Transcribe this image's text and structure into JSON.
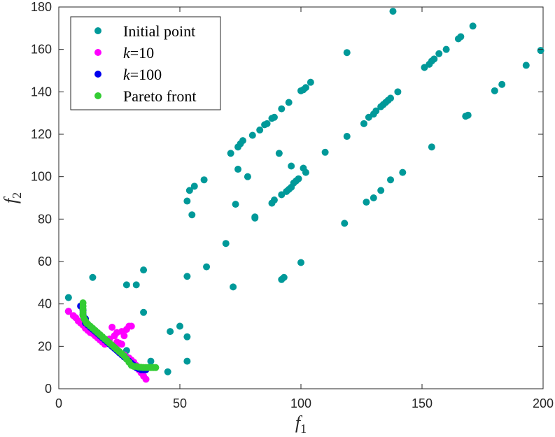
{
  "chart_data": {
    "type": "scatter",
    "xlabel": {
      "symbol": "f",
      "sub": "1"
    },
    "ylabel": {
      "symbol": "f",
      "sub": "2"
    },
    "xlim": [
      0,
      200
    ],
    "ylim": [
      0,
      180
    ],
    "xticks": [
      0,
      50,
      100,
      150,
      200
    ],
    "yticks": [
      0,
      20,
      40,
      60,
      80,
      100,
      120,
      140,
      160,
      180
    ],
    "grid": false,
    "legend_placement": "top-left",
    "series": [
      {
        "name": "Initial point",
        "color": "#009999",
        "points": [
          [
            4,
            43
          ],
          [
            4,
            36.5
          ],
          [
            14,
            52.5
          ],
          [
            28,
            49
          ],
          [
            32,
            49
          ],
          [
            35,
            56
          ],
          [
            35,
            36
          ],
          [
            28,
            18
          ],
          [
            38,
            13
          ],
          [
            45,
            8
          ],
          [
            46,
            27
          ],
          [
            50,
            29.5
          ],
          [
            53,
            24.5
          ],
          [
            53,
            13
          ],
          [
            53,
            53
          ],
          [
            53,
            88.5
          ],
          [
            54,
            93.5
          ],
          [
            55,
            82
          ],
          [
            56,
            95.5
          ],
          [
            60,
            98.5
          ],
          [
            61,
            57.5
          ],
          [
            69,
            68.5
          ],
          [
            71,
            111
          ],
          [
            72,
            48
          ],
          [
            73,
            87
          ],
          [
            74,
            103.5
          ],
          [
            74,
            114
          ],
          [
            75,
            115.5
          ],
          [
            76,
            117
          ],
          [
            78,
            100
          ],
          [
            80,
            119.5
          ],
          [
            81,
            81
          ],
          [
            81,
            80.5
          ],
          [
            83,
            122
          ],
          [
            85,
            124.5
          ],
          [
            86,
            125
          ],
          [
            88,
            127.5
          ],
          [
            89,
            128
          ],
          [
            88,
            87.5
          ],
          [
            89,
            89
          ],
          [
            91,
            111
          ],
          [
            92,
            132
          ],
          [
            92,
            51.5
          ],
          [
            93,
            52.5
          ],
          [
            92,
            91.5
          ],
          [
            94,
            93
          ],
          [
            95,
            94
          ],
          [
            95,
            135
          ],
          [
            96,
            105
          ],
          [
            96,
            95
          ],
          [
            97,
            97
          ],
          [
            98,
            98
          ],
          [
            99,
            99
          ],
          [
            100,
            59.5
          ],
          [
            100,
            140.5
          ],
          [
            101,
            141
          ],
          [
            102,
            142
          ],
          [
            101,
            104
          ],
          [
            102,
            102
          ],
          [
            104,
            144.5
          ],
          [
            110,
            111.5
          ],
          [
            118,
            78
          ],
          [
            119,
            119
          ],
          [
            119,
            158.5
          ],
          [
            126,
            125
          ],
          [
            127,
            88
          ],
          [
            128,
            128
          ],
          [
            130,
            129.5
          ],
          [
            130,
            90
          ],
          [
            131,
            131
          ],
          [
            133,
            93.5
          ],
          [
            133,
            133
          ],
          [
            134,
            134
          ],
          [
            135,
            135
          ],
          [
            136,
            136
          ],
          [
            137,
            98.5
          ],
          [
            137,
            137
          ],
          [
            138,
            178
          ],
          [
            140,
            140
          ],
          [
            142,
            102
          ],
          [
            151,
            151.5
          ],
          [
            153,
            153
          ],
          [
            154,
            154.5
          ],
          [
            155,
            155.5
          ],
          [
            154,
            114
          ],
          [
            157,
            158
          ],
          [
            160,
            160
          ],
          [
            165,
            165
          ],
          [
            166,
            166
          ],
          [
            168,
            128.5
          ],
          [
            169,
            129
          ],
          [
            171,
            171
          ],
          [
            180,
            140.5
          ],
          [
            183,
            143.5
          ],
          [
            193,
            152.5
          ],
          [
            199,
            159.5
          ]
        ]
      },
      {
        "name": "k=10",
        "color": "#ff00ff",
        "points": [
          [
            4,
            36.5
          ],
          [
            6,
            34.5
          ],
          [
            7,
            33.5
          ],
          [
            8,
            32
          ],
          [
            9,
            31
          ],
          [
            10,
            30
          ],
          [
            11,
            28.5
          ],
          [
            12,
            27.5
          ],
          [
            13,
            26.5
          ],
          [
            14,
            26
          ],
          [
            15,
            25
          ],
          [
            16,
            24
          ],
          [
            17,
            23
          ],
          [
            18,
            22
          ],
          [
            19,
            21
          ],
          [
            20,
            22
          ],
          [
            21,
            23.5
          ],
          [
            22,
            29
          ],
          [
            23,
            25
          ],
          [
            24,
            26.5
          ],
          [
            24,
            22
          ],
          [
            25,
            21.5
          ],
          [
            26,
            27
          ],
          [
            26,
            21
          ],
          [
            27,
            25
          ],
          [
            28,
            28
          ],
          [
            29,
            29.5
          ],
          [
            30,
            29.5
          ],
          [
            28,
            15
          ],
          [
            29,
            14.5
          ],
          [
            30,
            13.5
          ],
          [
            31,
            12.5
          ],
          [
            32,
            11
          ],
          [
            33,
            9
          ],
          [
            34,
            7.5
          ],
          [
            35,
            6
          ],
          [
            36,
            4.5
          ],
          [
            25,
            17
          ],
          [
            26,
            16.5
          ],
          [
            27,
            16
          ]
        ]
      },
      {
        "name": "k=100",
        "color": "#0000ee",
        "points": [
          [
            9,
            39
          ],
          [
            10,
            37
          ],
          [
            10,
            35
          ],
          [
            11,
            33
          ],
          [
            11,
            31
          ],
          [
            12,
            30
          ],
          [
            13,
            29
          ],
          [
            14,
            28
          ],
          [
            15,
            27
          ],
          [
            16,
            26
          ],
          [
            17,
            25
          ],
          [
            18,
            24
          ],
          [
            19,
            23
          ],
          [
            20,
            22
          ],
          [
            21,
            21
          ],
          [
            22,
            20
          ],
          [
            23,
            19
          ],
          [
            24,
            18
          ],
          [
            25,
            17
          ],
          [
            26,
            16
          ],
          [
            27,
            15
          ],
          [
            28,
            14
          ],
          [
            29,
            13
          ],
          [
            30,
            12
          ],
          [
            31,
            11
          ],
          [
            32,
            10
          ],
          [
            33,
            9.5
          ],
          [
            34,
            9
          ],
          [
            35,
            9
          ],
          [
            36,
            9
          ]
        ]
      },
      {
        "name": "Pareto front",
        "color": "#33cc33",
        "points": [
          [
            10,
            40.5
          ],
          [
            10,
            39
          ],
          [
            10,
            37.5
          ],
          [
            10,
            36
          ],
          [
            10,
            34.5
          ],
          [
            10.5,
            33
          ],
          [
            11,
            32
          ],
          [
            11.5,
            31
          ],
          [
            12,
            30.5
          ],
          [
            13,
            29.5
          ],
          [
            14,
            28.5
          ],
          [
            15,
            27.5
          ],
          [
            16,
            26.5
          ],
          [
            17,
            25.5
          ],
          [
            18,
            24.5
          ],
          [
            19,
            23.5
          ],
          [
            20,
            22.5
          ],
          [
            21,
            21.5
          ],
          [
            22,
            20.5
          ],
          [
            23,
            19.5
          ],
          [
            24,
            18.5
          ],
          [
            25,
            17.5
          ],
          [
            26,
            16.5
          ],
          [
            27,
            15.5
          ],
          [
            28,
            14
          ],
          [
            29,
            12.5
          ],
          [
            30,
            11
          ],
          [
            31,
            10.5
          ],
          [
            32,
            10.5
          ],
          [
            33,
            10.2
          ],
          [
            34,
            10.1
          ],
          [
            35,
            10
          ],
          [
            36,
            10
          ],
          [
            37,
            10
          ],
          [
            38,
            10
          ],
          [
            39,
            10
          ],
          [
            40,
            10
          ]
        ]
      }
    ]
  }
}
